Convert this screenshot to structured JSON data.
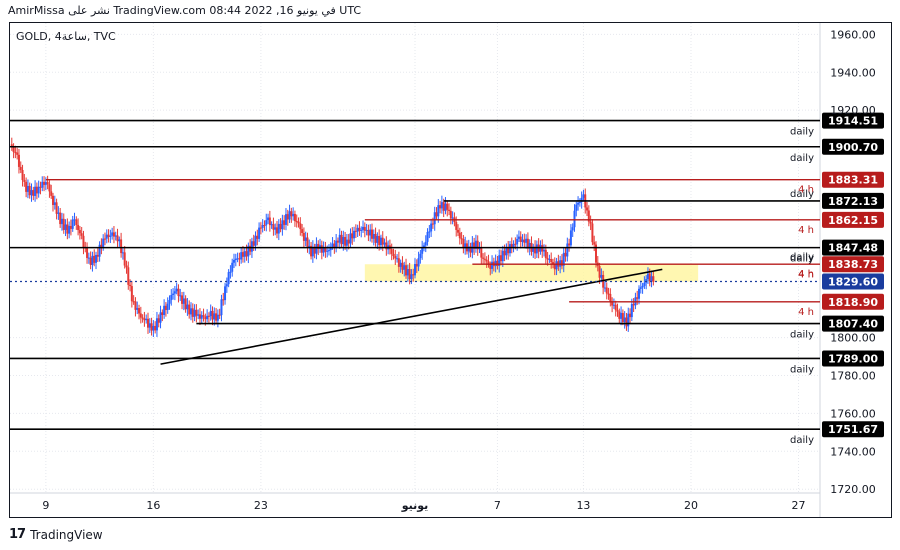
{
  "caption": "AmirMissa نشر على TradingView.com في يونيو 16, 2022 08:44 UTC",
  "symbol": "GOLD, 4ساعة, TVC",
  "brand": {
    "name": "TradingView",
    "logo_icon": "tradingview-logo-icon"
  },
  "colors": {
    "up": "#2962ff",
    "down": "#e53935",
    "support": "#000000",
    "resistance": "#b71c1c",
    "current": "#1a3c9e",
    "zone": "#fff59d",
    "grid": "#e6e8ee",
    "axis_text": "#131722"
  },
  "chart_data": {
    "type": "candlestick",
    "y_axis": {
      "ylim": [
        1718,
        1966
      ],
      "ticks": [
        "1960.00",
        "1940.00",
        "1920.00",
        "1800.00",
        "1780.00",
        "1760.00",
        "1740.00",
        "1720.00"
      ]
    },
    "x_axis": {
      "ticks": [
        {
          "label": "9",
          "x": 10
        },
        {
          "label": "16",
          "x": 40
        },
        {
          "label": "23",
          "x": 70
        },
        {
          "label": "يونيو",
          "x": 113
        },
        {
          "label": "7",
          "x": 136
        },
        {
          "label": "13",
          "x": 160
        },
        {
          "label": "20",
          "x": 190
        },
        {
          "label": "27",
          "x": 220
        }
      ],
      "range": [
        0,
        226
      ]
    },
    "levels": [
      {
        "value": "1914.51",
        "price": 1914.51,
        "label": "daily",
        "kind": "support",
        "x_start": 0
      },
      {
        "value": "1900.70",
        "price": 1900.7,
        "label": "daily",
        "kind": "support",
        "x_start": 0
      },
      {
        "value": "1883.31",
        "price": 1883.31,
        "label": "4 h",
        "kind": "resistance",
        "x_start": 10
      },
      {
        "value": "1872.13",
        "price": 1872.13,
        "label": "",
        "kind": "support",
        "x_start": 121
      },
      {
        "value": "1862.15",
        "price": 1862.15,
        "label": "4 h",
        "kind": "resistance",
        "x_start": 99
      },
      {
        "value": "1847.48",
        "price": 1847.48,
        "label": "daily",
        "kind": "support",
        "x_start": 0
      },
      {
        "value": "1838.73",
        "price": 1838.73,
        "label": "4 h",
        "kind": "resistance",
        "x_start": 129
      },
      {
        "value": "1829.60",
        "price": 1829.6,
        "label": "",
        "kind": "current",
        "x_start": 0
      },
      {
        "value": "1818.90",
        "price": 1818.9,
        "label": "4 h",
        "kind": "resistance",
        "x_start": 156
      },
      {
        "value": "1807.40",
        "price": 1807.4,
        "label": "daily",
        "kind": "support",
        "x_start": 52
      },
      {
        "value": "1789.00",
        "price": 1789.0,
        "label": "daily",
        "kind": "support",
        "x_start": 0
      },
      {
        "value": "1751.67",
        "price": 1751.67,
        "label": "daily",
        "kind": "support",
        "x_start": 0
      }
    ],
    "level_label_extras": [
      {
        "label": "daily",
        "price": 1872.13
      },
      {
        "label": "daily",
        "price": 1838.73
      },
      {
        "label": "4 h",
        "price": 1829.6
      }
    ],
    "zone": {
      "x0": 99,
      "x1": 192,
      "y0": 1829.6,
      "y1": 1838.7
    },
    "trendline": {
      "x0": 42,
      "y0": 1786,
      "x1": 182,
      "y1": 1836
    },
    "series": [
      {
        "x": 0,
        "price": 1902
      },
      {
        "x": 2,
        "price": 1895
      },
      {
        "x": 4,
        "price": 1880
      },
      {
        "x": 6,
        "price": 1876
      },
      {
        "x": 8,
        "price": 1879
      },
      {
        "x": 10,
        "price": 1883
      },
      {
        "x": 12,
        "price": 1872
      },
      {
        "x": 14,
        "price": 1862
      },
      {
        "x": 16,
        "price": 1856
      },
      {
        "x": 18,
        "price": 1862
      },
      {
        "x": 20,
        "price": 1852
      },
      {
        "x": 22,
        "price": 1840
      },
      {
        "x": 24,
        "price": 1842
      },
      {
        "x": 26,
        "price": 1852
      },
      {
        "x": 28,
        "price": 1855
      },
      {
        "x": 30,
        "price": 1853
      },
      {
        "x": 32,
        "price": 1840
      },
      {
        "x": 34,
        "price": 1820
      },
      {
        "x": 36,
        "price": 1812
      },
      {
        "x": 38,
        "price": 1808
      },
      {
        "x": 40,
        "price": 1804
      },
      {
        "x": 42,
        "price": 1812
      },
      {
        "x": 44,
        "price": 1818
      },
      {
        "x": 46,
        "price": 1826
      },
      {
        "x": 48,
        "price": 1820
      },
      {
        "x": 50,
        "price": 1814
      },
      {
        "x": 52,
        "price": 1812
      },
      {
        "x": 54,
        "price": 1810
      },
      {
        "x": 56,
        "price": 1812
      },
      {
        "x": 58,
        "price": 1810
      },
      {
        "x": 60,
        "price": 1826
      },
      {
        "x": 62,
        "price": 1840
      },
      {
        "x": 64,
        "price": 1843
      },
      {
        "x": 66,
        "price": 1845
      },
      {
        "x": 68,
        "price": 1850
      },
      {
        "x": 70,
        "price": 1858
      },
      {
        "x": 72,
        "price": 1862
      },
      {
        "x": 74,
        "price": 1856
      },
      {
        "x": 76,
        "price": 1860
      },
      {
        "x": 78,
        "price": 1866
      },
      {
        "x": 80,
        "price": 1862
      },
      {
        "x": 82,
        "price": 1853
      },
      {
        "x": 84,
        "price": 1845
      },
      {
        "x": 86,
        "price": 1848
      },
      {
        "x": 88,
        "price": 1845
      },
      {
        "x": 90,
        "price": 1848
      },
      {
        "x": 92,
        "price": 1852
      },
      {
        "x": 94,
        "price": 1850
      },
      {
        "x": 96,
        "price": 1856
      },
      {
        "x": 98,
        "price": 1858
      },
      {
        "x": 100,
        "price": 1856
      },
      {
        "x": 102,
        "price": 1852
      },
      {
        "x": 104,
        "price": 1850
      },
      {
        "x": 106,
        "price": 1846
      },
      {
        "x": 108,
        "price": 1840
      },
      {
        "x": 110,
        "price": 1836
      },
      {
        "x": 112,
        "price": 1832
      },
      {
        "x": 114,
        "price": 1842
      },
      {
        "x": 116,
        "price": 1852
      },
      {
        "x": 118,
        "price": 1862
      },
      {
        "x": 120,
        "price": 1870
      },
      {
        "x": 122,
        "price": 1868
      },
      {
        "x": 124,
        "price": 1860
      },
      {
        "x": 126,
        "price": 1850
      },
      {
        "x": 128,
        "price": 1846
      },
      {
        "x": 130,
        "price": 1850
      },
      {
        "x": 132,
        "price": 1842
      },
      {
        "x": 134,
        "price": 1838
      },
      {
        "x": 136,
        "price": 1840
      },
      {
        "x": 138,
        "price": 1845
      },
      {
        "x": 140,
        "price": 1848
      },
      {
        "x": 142,
        "price": 1852
      },
      {
        "x": 144,
        "price": 1850
      },
      {
        "x": 146,
        "price": 1846
      },
      {
        "x": 148,
        "price": 1848
      },
      {
        "x": 150,
        "price": 1842
      },
      {
        "x": 152,
        "price": 1838
      },
      {
        "x": 154,
        "price": 1840
      },
      {
        "x": 156,
        "price": 1850
      },
      {
        "x": 158,
        "price": 1870
      },
      {
        "x": 160,
        "price": 1874
      },
      {
        "x": 162,
        "price": 1858
      },
      {
        "x": 164,
        "price": 1836
      },
      {
        "x": 166,
        "price": 1826
      },
      {
        "x": 168,
        "price": 1818
      },
      {
        "x": 170,
        "price": 1812
      },
      {
        "x": 172,
        "price": 1808
      },
      {
        "x": 174,
        "price": 1818
      },
      {
        "x": 176,
        "price": 1826
      },
      {
        "x": 178,
        "price": 1832
      },
      {
        "x": 180,
        "price": 1830
      }
    ]
  }
}
